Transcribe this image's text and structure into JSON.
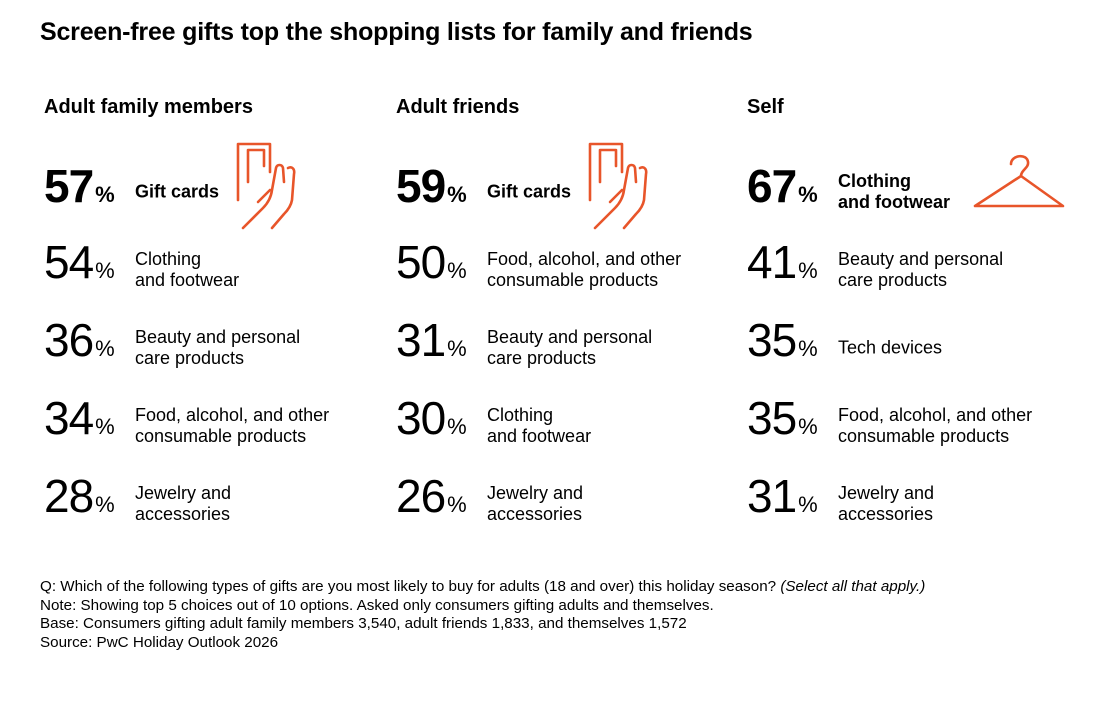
{
  "title": "Screen-free gifts top the shopping lists for family and friends",
  "colors": {
    "accent": "#e8552a",
    "text": "#000000"
  },
  "chart_data": {
    "type": "table",
    "title": "Screen-free gifts top the shopping lists for family and friends",
    "unit": "%",
    "groups": [
      {
        "name": "Adult family members",
        "icon": "gift-card-hand-icon",
        "items": [
          {
            "value": 57,
            "label": "Gift cards"
          },
          {
            "value": 54,
            "label": "Clothing\nand footwear"
          },
          {
            "value": 36,
            "label": "Beauty and personal\ncare products"
          },
          {
            "value": 34,
            "label": "Food, alcohol, and other\nconsumable products"
          },
          {
            "value": 28,
            "label": "Jewelry and\naccessories"
          }
        ]
      },
      {
        "name": "Adult friends",
        "icon": "gift-card-hand-icon",
        "items": [
          {
            "value": 59,
            "label": "Gift cards"
          },
          {
            "value": 50,
            "label": "Food, alcohol, and other\nconsumable products"
          },
          {
            "value": 31,
            "label": "Beauty and personal\ncare products"
          },
          {
            "value": 30,
            "label": "Clothing\nand footwear"
          },
          {
            "value": 26,
            "label": "Jewelry and\naccessories"
          }
        ]
      },
      {
        "name": "Self",
        "icon": "clothes-hanger-icon",
        "items": [
          {
            "value": 67,
            "label": "Clothing\nand footwear"
          },
          {
            "value": 41,
            "label": "Beauty and personal\ncare products"
          },
          {
            "value": 35,
            "label": "Tech devices"
          },
          {
            "value": 35,
            "label": "Food, alcohol, and other\nconsumable products"
          },
          {
            "value": 31,
            "label": "Jewelry and\naccessories"
          }
        ]
      }
    ]
  },
  "notes": {
    "question": "Q: Which of the following types of gifts are you most likely to buy for adults (18 and over) this holiday season?",
    "question_italic": "(Select all that apply.)",
    "note": "Note: Showing top 5 choices out of 10 options. Asked only consumers gifting adults and themselves.",
    "base": "Base: Consumers gifting adult family members 3,540, adult friends 1,833, and themselves 1,572",
    "source": "Source: PwC Holiday Outlook 2026"
  }
}
